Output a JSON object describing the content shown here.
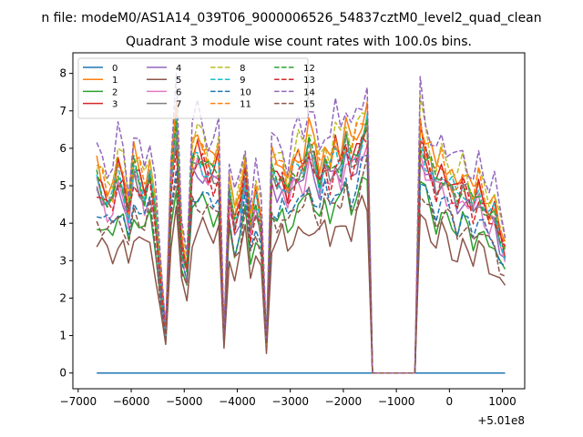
{
  "chart_data": {
    "type": "line",
    "suptitle": "n file: modeM0/AS1A14_039T06_9000006526_54837cztM0_level2_quad_clean",
    "title": "Quadrant 3 module wise count rates with 100.0s bins.",
    "xlabel": "",
    "ylabel": "",
    "offset_text": "+5.01e8",
    "xlim": [
      -7100,
      1420
    ],
    "ylim": [
      -0.42,
      8.55
    ],
    "xticks": [
      -7000,
      -6000,
      -5000,
      -4000,
      -3000,
      -2000,
      -1000,
      0,
      1000
    ],
    "xtick_labels": [
      "−7000",
      "−6000",
      "−5000",
      "−4000",
      "−3000",
      "−2000",
      "−1000",
      "0",
      "1000"
    ],
    "yticks": [
      0,
      1,
      2,
      3,
      4,
      5,
      6,
      7,
      8
    ],
    "ytick_labels": [
      "0",
      "1",
      "2",
      "3",
      "4",
      "5",
      "6",
      "7",
      "8"
    ],
    "grid": false,
    "legend_position": "top-left",
    "legend_columns": 4,
    "x_start": -6650,
    "bin": 100,
    "segments": [
      {
        "from": -6650,
        "to": -1550
      },
      {
        "from": -550,
        "to": 1050
      }
    ],
    "gap": {
      "from": -1450,
      "to": -650,
      "value": 0
    },
    "seg1_shape": [
      0.78,
      0.74,
      0.7,
      0.7,
      0.8,
      0.76,
      0.64,
      0.82,
      0.78,
      0.72,
      0.8,
      0.64,
      0.38,
      0.16,
      0.76,
      1.0,
      0.52,
      0.42,
      0.84,
      0.88,
      0.86,
      0.82,
      0.8,
      0.84,
      0.14,
      0.72,
      0.6,
      0.68,
      0.82,
      0.58,
      0.7,
      0.6,
      0.12,
      0.8,
      0.78,
      0.8,
      0.72,
      0.8,
      0.84,
      0.82,
      0.9,
      0.86,
      0.78,
      0.86,
      0.8,
      0.88,
      0.84,
      0.92,
      0.84,
      0.9,
      0.96,
      1.0
    ],
    "seg2_shape": [
      1.0,
      0.92,
      0.86,
      0.8,
      0.86,
      0.82,
      0.78,
      0.74,
      0.8,
      0.76,
      0.7,
      0.78,
      0.72,
      0.66,
      0.68,
      0.58,
      0.52
    ],
    "series": [
      {
        "name": "0",
        "color": "#1f77b4",
        "dash": "solid",
        "level": 0,
        "jitter": 0
      },
      {
        "name": "1",
        "color": "#ff7f0e",
        "dash": "solid",
        "level": 7.1,
        "jitter": 0.35
      },
      {
        "name": "2",
        "color": "#2ca02c",
        "dash": "solid",
        "level": 5.3,
        "jitter": 0.3
      },
      {
        "name": "3",
        "color": "#d62728",
        "dash": "solid",
        "level": 6.7,
        "jitter": 0.35
      },
      {
        "name": "4",
        "color": "#9467bd",
        "dash": "solid",
        "level": 6.3,
        "jitter": 0.35
      },
      {
        "name": "5",
        "color": "#8c564b",
        "dash": "solid",
        "level": 4.5,
        "jitter": 0.35
      },
      {
        "name": "6",
        "color": "#e377c2",
        "dash": "solid",
        "level": 6.2,
        "jitter": 0.35
      },
      {
        "name": "7",
        "color": "#7f7f7f",
        "dash": "solid",
        "level": 6.5,
        "jitter": 0.35
      },
      {
        "name": "8",
        "color": "#bcbd22",
        "dash": "dashed",
        "level": 7.3,
        "jitter": 0.35
      },
      {
        "name": "9",
        "color": "#17becf",
        "dash": "dashed",
        "level": 6.6,
        "jitter": 0.35
      },
      {
        "name": "10",
        "color": "#1f77b4",
        "dash": "dashed",
        "level": 5.6,
        "jitter": 0.3
      },
      {
        "name": "11",
        "color": "#ff7f0e",
        "dash": "dashed",
        "level": 6.9,
        "jitter": 0.35
      },
      {
        "name": "12",
        "color": "#2ca02c",
        "dash": "dashed",
        "level": 6.6,
        "jitter": 0.35
      },
      {
        "name": "13",
        "color": "#d62728",
        "dash": "dashed",
        "level": 6.4,
        "jitter": 0.35
      },
      {
        "name": "14",
        "color": "#9467bd",
        "dash": "dashed",
        "level": 7.8,
        "jitter": 0.4
      },
      {
        "name": "15",
        "color": "#8c564b",
        "dash": "dashed",
        "level": 5.3,
        "jitter": 0.35
      }
    ]
  }
}
